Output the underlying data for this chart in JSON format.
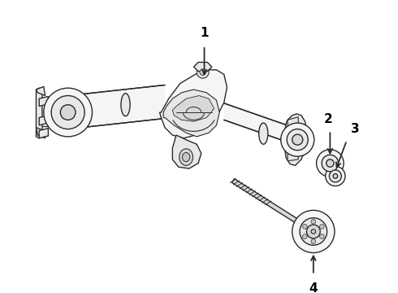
{
  "background_color": "#ffffff",
  "line_color": "#2a2a2a",
  "label_color": "#000000",
  "fig_width": 4.9,
  "fig_height": 3.6,
  "dpi": 100,
  "lw": 1.0,
  "fill_light": "#e8e8e8",
  "fill_mid": "#d8d8d8",
  "fill_dark": "#c8c8c8",
  "fill_white": "#f5f5f5"
}
